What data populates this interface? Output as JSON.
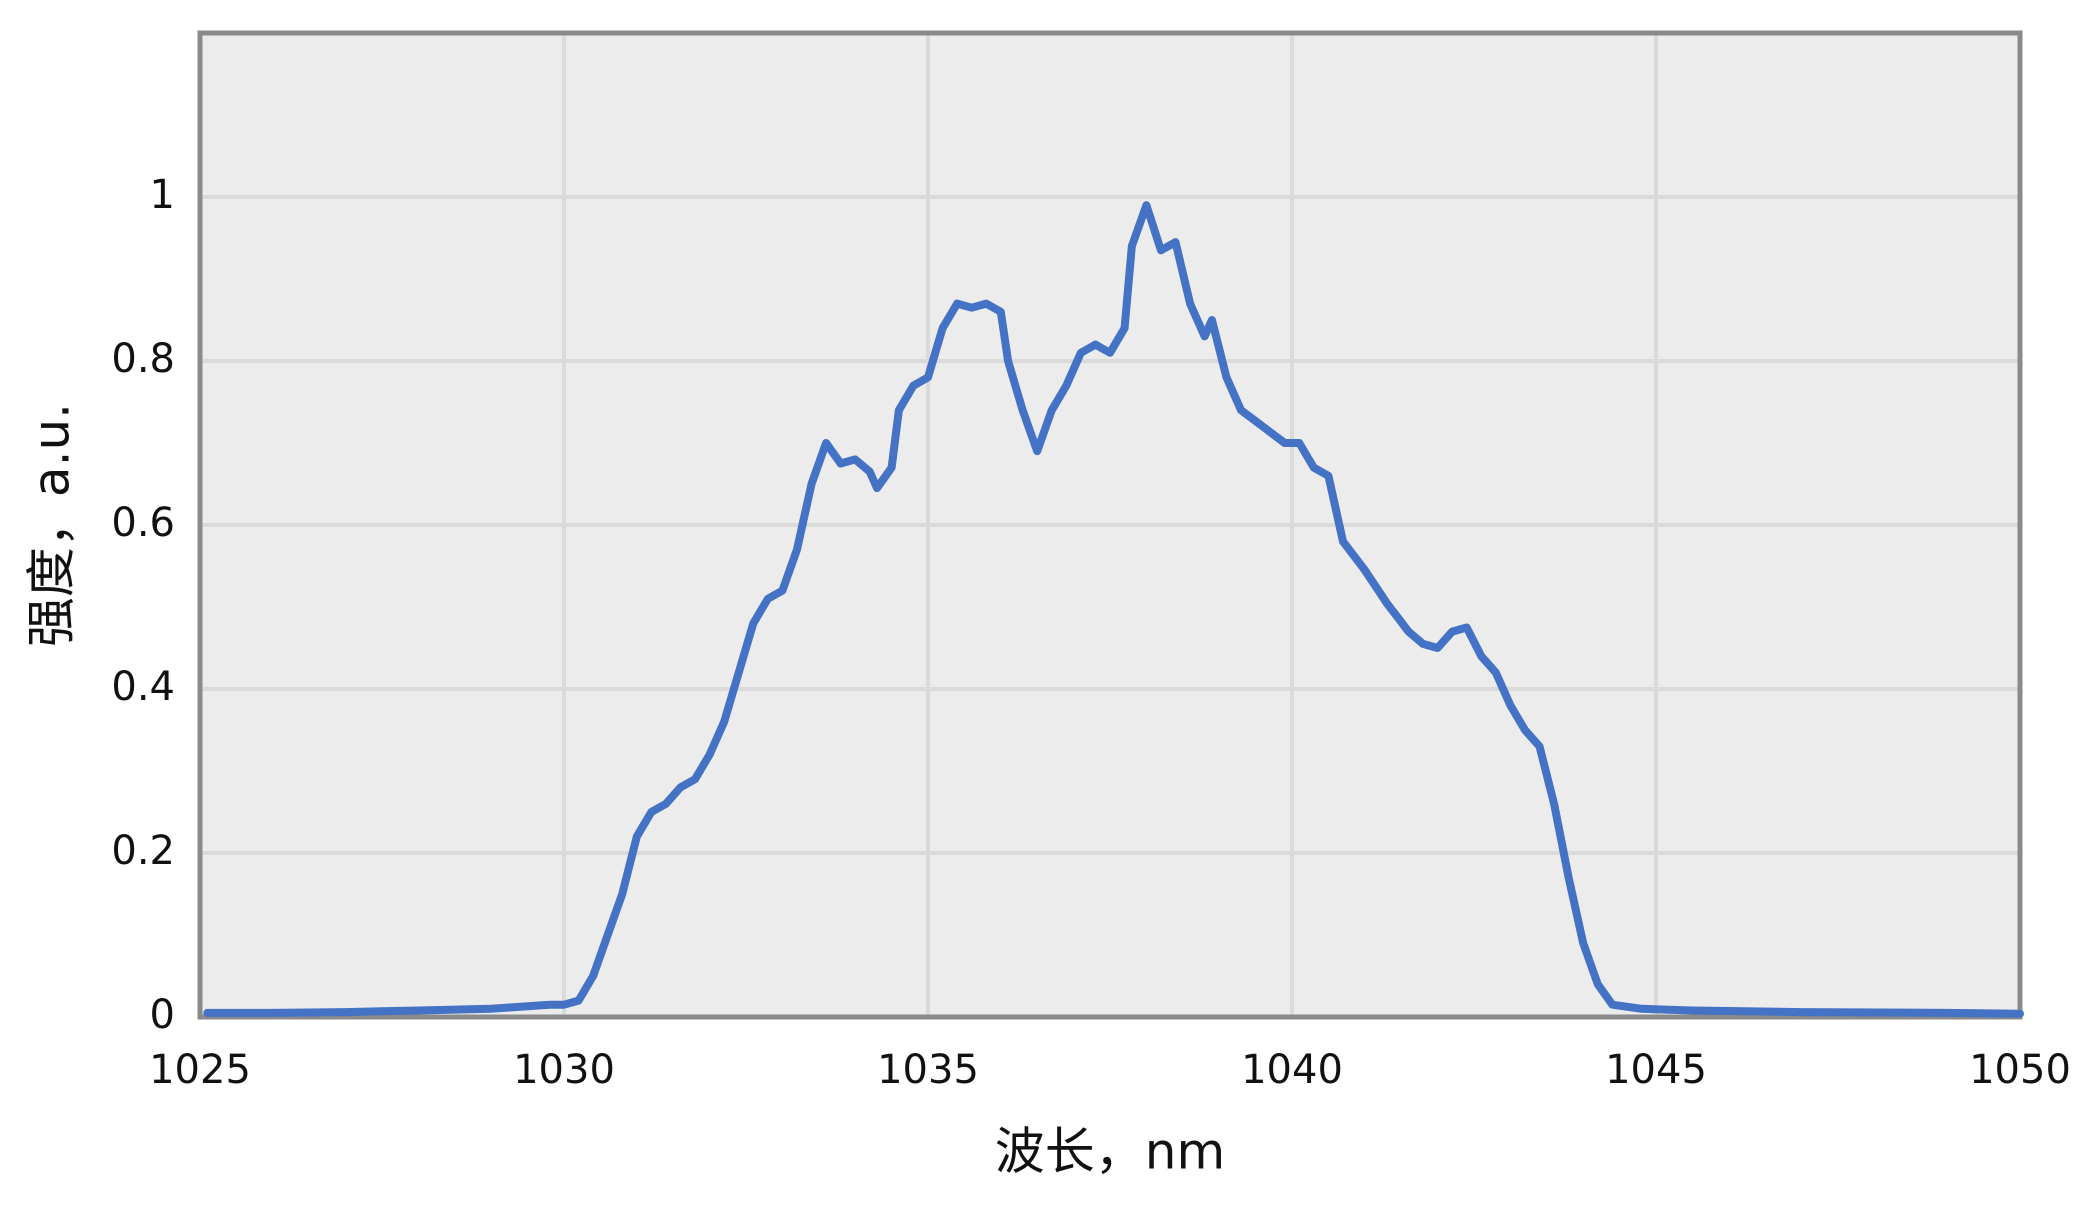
{
  "chart_data": {
    "type": "line",
    "x_label": "波长，nm",
    "y_label": "强度，a.u.",
    "x": [
      1025.1,
      1026,
      1027,
      1028,
      1029,
      1029.8,
      1030,
      1030.2,
      1030.4,
      1030.6,
      1030.8,
      1031.0,
      1031.2,
      1031.4,
      1031.6,
      1031.8,
      1032.0,
      1032.2,
      1032.4,
      1032.6,
      1032.8,
      1033.0,
      1033.2,
      1033.4,
      1033.6,
      1033.8,
      1034.0,
      1034.2,
      1034.3,
      1034.5,
      1034.6,
      1034.8,
      1035.0,
      1035.2,
      1035.4,
      1035.6,
      1035.8,
      1036.0,
      1036.1,
      1036.3,
      1036.5,
      1036.7,
      1036.9,
      1037.1,
      1037.3,
      1037.5,
      1037.7,
      1037.8,
      1038.0,
      1038.2,
      1038.4,
      1038.6,
      1038.8,
      1038.9,
      1039.1,
      1039.3,
      1039.6,
      1039.9,
      1040.1,
      1040.3,
      1040.5,
      1040.7,
      1041.0,
      1041.3,
      1041.6,
      1041.8,
      1042.0,
      1042.2,
      1042.4,
      1042.6,
      1042.8,
      1043.0,
      1043.2,
      1043.4,
      1043.6,
      1043.8,
      1044.0,
      1044.2,
      1044.4,
      1044.8,
      1045.5,
      1047,
      1049,
      1050
    ],
    "series": [
      {
        "color": "#4472c4",
        "values": [
          0.005,
          0.005,
          0.006,
          0.008,
          0.01,
          0.015,
          0.015,
          0.02,
          0.05,
          0.1,
          0.15,
          0.22,
          0.25,
          0.26,
          0.28,
          0.29,
          0.32,
          0.36,
          0.42,
          0.48,
          0.51,
          0.52,
          0.57,
          0.65,
          0.7,
          0.675,
          0.68,
          0.665,
          0.645,
          0.67,
          0.74,
          0.77,
          0.78,
          0.84,
          0.87,
          0.865,
          0.87,
          0.86,
          0.8,
          0.74,
          0.69,
          0.74,
          0.77,
          0.81,
          0.82,
          0.81,
          0.84,
          0.94,
          0.99,
          0.935,
          0.945,
          0.87,
          0.83,
          0.85,
          0.78,
          0.74,
          0.72,
          0.7,
          0.7,
          0.67,
          0.66,
          0.58,
          0.545,
          0.505,
          0.47,
          0.455,
          0.45,
          0.47,
          0.475,
          0.44,
          0.42,
          0.38,
          0.35,
          0.33,
          0.26,
          0.17,
          0.09,
          0.04,
          0.015,
          0.01,
          0.008,
          0.006,
          0.005,
          0.004
        ]
      }
    ],
    "xlim": [
      1025,
      1050
    ],
    "xticks": [
      1025,
      1030,
      1035,
      1040,
      1045,
      1050
    ],
    "ylim": [
      0,
      1.2
    ],
    "yticks": [
      0,
      0.2,
      0.4,
      0.6,
      0.8,
      1
    ],
    "grid": true,
    "background": "#ececec"
  }
}
